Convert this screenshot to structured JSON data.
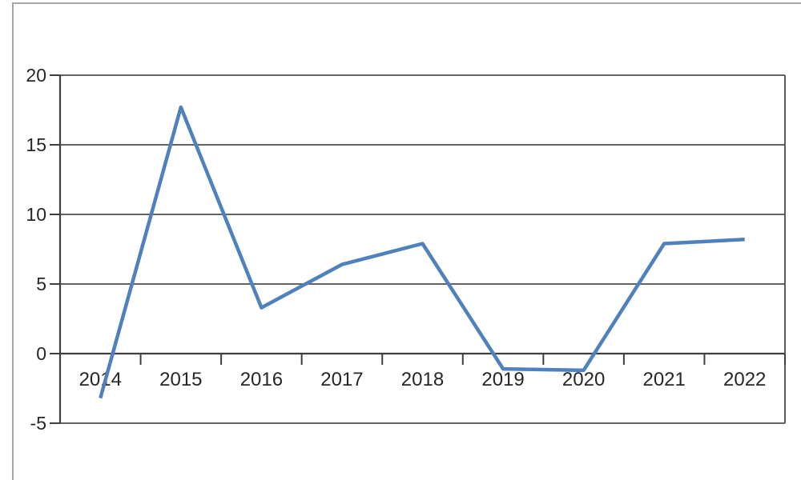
{
  "figure": {
    "background": "#ffffff",
    "border_color": "#a6a6a6"
  },
  "chart_data": {
    "type": "line",
    "categories": [
      "2014",
      "2015",
      "2016",
      "2017",
      "2018",
      "2019",
      "2020",
      "2021",
      "2022"
    ],
    "series": [
      {
        "color": "#4F81BD",
        "values": [
          -3.2,
          17.7,
          3.3,
          6.4,
          7.9,
          -1.1,
          -1.2,
          7.9,
          8.2
        ]
      }
    ],
    "title": "",
    "xlabel": "",
    "ylabel": "",
    "ylim": [
      -5,
      20
    ],
    "yticks": [
      -5,
      0,
      5,
      10,
      15,
      20
    ],
    "ytick_labels": [
      "-5",
      "0",
      "5",
      "10",
      "15",
      "20"
    ],
    "grid": true,
    "legend": false,
    "line_width": 4.5,
    "axis_color": "#3f3f3f",
    "gridline_color": "#4d4d4d",
    "tick_label_color": "#262626",
    "tick_label_font_size": 23
  }
}
